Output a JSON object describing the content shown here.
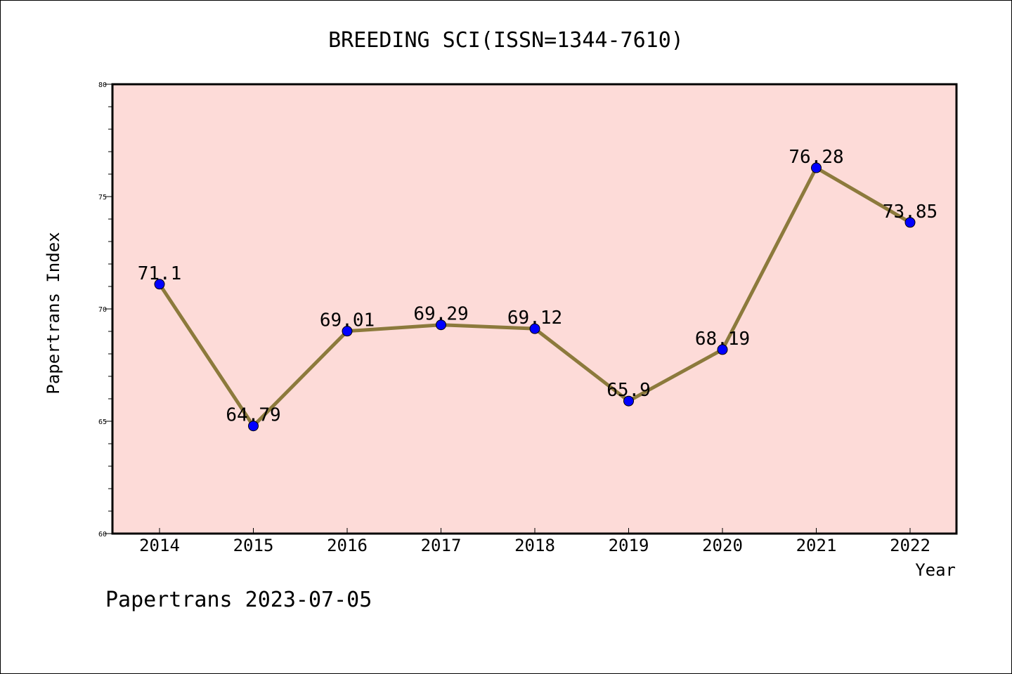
{
  "chart_data": {
    "type": "line",
    "title": "BREEDING SCI(ISSN=1344-7610)",
    "xlabel": "Year",
    "ylabel": "Papertrans Index",
    "categories": [
      "2014",
      "2015",
      "2016",
      "2017",
      "2018",
      "2019",
      "2020",
      "2021",
      "2022"
    ],
    "values": [
      71.1,
      64.79,
      69.01,
      69.29,
      69.12,
      65.9,
      68.19,
      76.28,
      73.85
    ],
    "data_labels": [
      "71.1",
      "64.79",
      "69.01",
      "69.29",
      "69.12",
      "65.9",
      "68.19",
      "76.28",
      "73.85"
    ],
    "ylim": [
      60,
      80
    ],
    "yticks": [
      "60",
      "65",
      "70",
      "75",
      "80"
    ],
    "grid": false,
    "legend": "none",
    "colors": {
      "plot_background": "#fddbd8",
      "line": "#8c7a3c",
      "marker": "#0000ff"
    }
  },
  "footer": "Papertrans 2023-07-05"
}
